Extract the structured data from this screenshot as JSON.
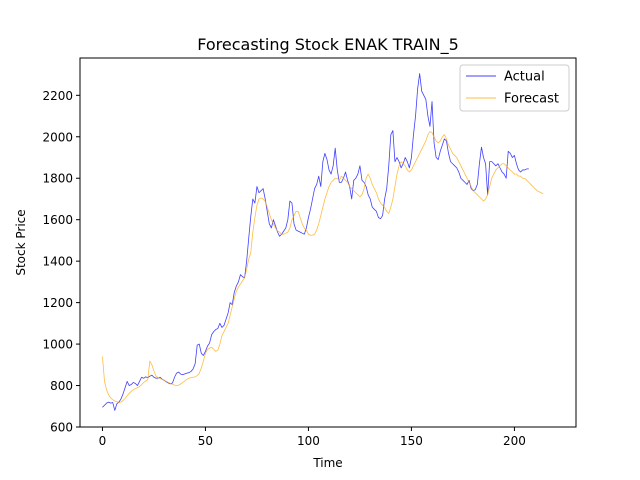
{
  "chart_data": {
    "type": "line",
    "title": "Forecasting Stock ENAK TRAIN_5",
    "xlabel": "Time",
    "ylabel": "Stock Price",
    "xlim": [
      -10.9,
      229.9
    ],
    "ylim": [
      600,
      2380
    ],
    "xticks": [
      0,
      50,
      100,
      150,
      200
    ],
    "yticks": [
      600,
      800,
      1000,
      1200,
      1400,
      1600,
      1800,
      2000,
      2200
    ],
    "grid": false,
    "legend_position": "top-right",
    "colors": {
      "Actual": "#0000ff",
      "Forecast": "#ffa500"
    },
    "series": [
      {
        "name": "Actual",
        "x_start": 0,
        "values": [
          695,
          705,
          715,
          720,
          715,
          718,
          680,
          712,
          720,
          735,
          760,
          790,
          820,
          800,
          805,
          815,
          810,
          800,
          820,
          840,
          835,
          842,
          838,
          845,
          850,
          840,
          835,
          836,
          840,
          830,
          825,
          818,
          812,
          808,
          812,
          840,
          860,
          865,
          855,
          852,
          856,
          860,
          862,
          868,
          880,
          905,
          995,
          1000,
          955,
          945,
          965,
          990,
          1005,
          1045,
          1060,
          1070,
          1075,
          1100,
          1080,
          1090,
          1120,
          1150,
          1200,
          1190,
          1250,
          1280,
          1300,
          1335,
          1325,
          1320,
          1400,
          1510,
          1615,
          1700,
          1680,
          1760,
          1730,
          1740,
          1750,
          1700,
          1640,
          1580,
          1560,
          1600,
          1570,
          1540,
          1520,
          1530,
          1545,
          1560,
          1600,
          1690,
          1680,
          1580,
          1550,
          1545,
          1540,
          1535,
          1530,
          1560,
          1610,
          1650,
          1700,
          1750,
          1770,
          1810,
          1760,
          1880,
          1920,
          1890,
          1840,
          1820,
          1860,
          1945,
          1840,
          1780,
          1780,
          1800,
          1830,
          1790,
          1760,
          1700,
          1790,
          1800,
          1820,
          1860,
          1790,
          1780,
          1760,
          1720,
          1700,
          1660,
          1650,
          1640,
          1610,
          1605,
          1620,
          1700,
          1750,
          1860,
          2010,
          2030,
          1880,
          1900,
          1880,
          1850,
          1870,
          1900,
          1880,
          1850,
          1900,
          2010,
          2100,
          2230,
          2305,
          2220,
          2200,
          2180,
          2100,
          2050,
          2170,
          1970,
          1900,
          1890,
          1930,
          1960,
          1990,
          1980,
          1920,
          1880,
          1870,
          1860,
          1850,
          1830,
          1800,
          1790,
          1780,
          1770,
          1790,
          1750,
          1740,
          1745,
          1770,
          1870,
          1950,
          1900,
          1870,
          1720,
          1880,
          1880,
          1870,
          1860,
          1870,
          1850,
          1830,
          1820,
          1800,
          1930,
          1920,
          1900,
          1910,
          1870,
          1840,
          1830,
          1840,
          1840,
          1845,
          1845
        ]
      },
      {
        "name": "Forecast",
        "x_start": 0,
        "values": [
          940,
          820,
          780,
          755,
          740,
          732,
          725,
          722,
          718,
          720,
          728,
          738,
          750,
          762,
          772,
          780,
          785,
          790,
          795,
          805,
          815,
          822,
          828,
          918,
          900,
          870,
          845,
          838,
          834,
          830,
          825,
          820,
          815,
          810,
          806,
          802,
          800,
          802,
          808,
          815,
          822,
          830,
          835,
          838,
          840,
          842,
          848,
          860,
          885,
          918,
          955,
          975,
          980,
          985,
          975,
          965,
          970,
          1000,
          1040,
          1060,
          1080,
          1100,
          1140,
          1180,
          1220,
          1255,
          1275,
          1290,
          1305,
          1320,
          1360,
          1410,
          1440,
          1540,
          1610,
          1670,
          1700,
          1705,
          1700,
          1690,
          1660,
          1630,
          1600,
          1580,
          1560,
          1545,
          1540,
          1530,
          1530,
          1535,
          1540,
          1560,
          1600,
          1620,
          1640,
          1640,
          1610,
          1580,
          1560,
          1550,
          1530,
          1525,
          1525,
          1530,
          1550,
          1580,
          1620,
          1660,
          1700,
          1730,
          1760,
          1780,
          1790,
          1800,
          1800,
          1790,
          1810,
          1800,
          1790,
          1780,
          1760,
          1750,
          1740,
          1730,
          1720,
          1710,
          1720,
          1750,
          1800,
          1820,
          1800,
          1770,
          1750,
          1730,
          1700,
          1680,
          1670,
          1660,
          1640,
          1630,
          1660,
          1700,
          1760,
          1820,
          1860,
          1880,
          1870,
          1860,
          1840,
          1830,
          1840,
          1860,
          1880,
          1900,
          1920,
          1940,
          1960,
          1980,
          2010,
          2025,
          2020,
          2000,
          1980,
          1970,
          1980,
          2000,
          2010,
          1990,
          1960,
          1940,
          1920,
          1910,
          1900,
          1880,
          1860,
          1840,
          1820,
          1800,
          1780,
          1760,
          1740,
          1730,
          1720,
          1710,
          1700,
          1690,
          1700,
          1720,
          1760,
          1800,
          1820,
          1840,
          1850,
          1860,
          1870,
          1870,
          1860,
          1850,
          1840,
          1830,
          1820,
          1820,
          1810,
          1810,
          1800,
          1800,
          1790,
          1780,
          1770,
          1760,
          1750,
          1740,
          1735,
          1730,
          1725
        ]
      }
    ]
  }
}
